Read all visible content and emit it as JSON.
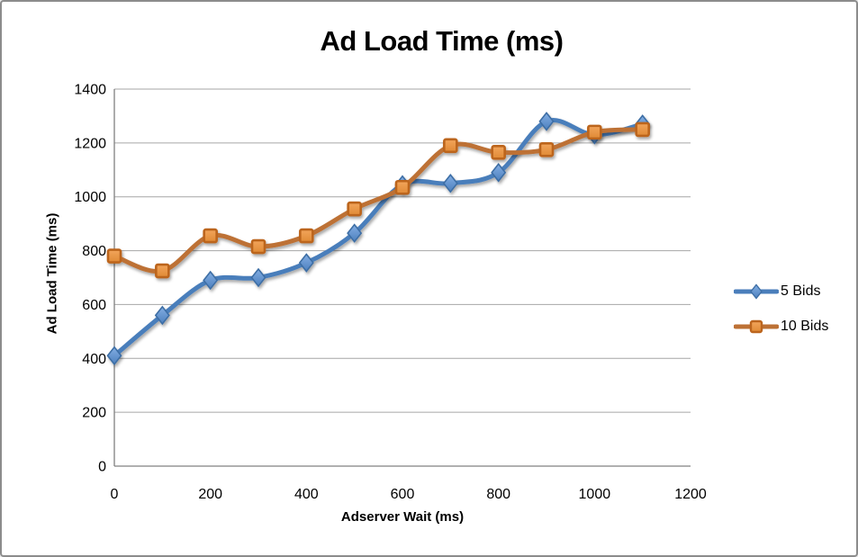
{
  "window": {
    "background": "#ffffff",
    "border_color": "#8c8c8c"
  },
  "chart_data": {
    "type": "line",
    "title": "Ad Load Time (ms)",
    "xlabel": "Adserver Wait (ms)",
    "ylabel": "Ad Load Time (ms)",
    "x": [
      0,
      100,
      200,
      300,
      400,
      500,
      600,
      700,
      800,
      900,
      1000,
      1100
    ],
    "series": [
      {
        "name": "5 Bids",
        "marker": "diamond",
        "line_color": "#4A7EBB",
        "marker_fill_light": "#83AEE3",
        "marker_fill_dark": "#4D80BE",
        "marker_stroke": "#3D6EA5",
        "values": [
          410,
          560,
          690,
          700,
          755,
          865,
          1045,
          1050,
          1090,
          1280,
          1230,
          1270
        ]
      },
      {
        "name": "10 Bids",
        "marker": "square",
        "line_color": "#BD7135",
        "marker_fill_light": "#F2A55C",
        "marker_fill_dark": "#E08A35",
        "marker_stroke": "#BC651E",
        "values": [
          780,
          725,
          855,
          815,
          855,
          955,
          1035,
          1190,
          1165,
          1175,
          1240,
          1250
        ]
      }
    ],
    "xlim": [
      0,
      1200
    ],
    "ylim": [
      0,
      1400
    ],
    "x_ticks": [
      0,
      200,
      400,
      600,
      800,
      1000,
      1200
    ],
    "y_ticks": [
      0,
      200,
      400,
      600,
      800,
      1000,
      1200,
      1400
    ],
    "grid": "horizontal",
    "gridline_color": "#A6A6A6",
    "axis_color": "#808080",
    "legend_position": "right",
    "smooth_lines": true
  }
}
